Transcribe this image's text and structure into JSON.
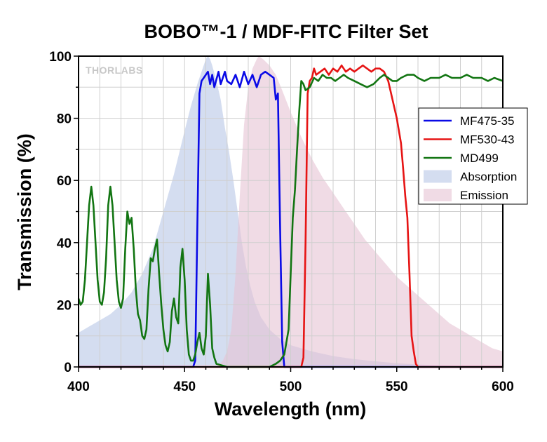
{
  "chart_data": {
    "type": "line",
    "title": "BOBO™-1 / MDF-FITC Filter Set",
    "xlabel": "Wavelength (nm)",
    "ylabel": "Transmission (%)",
    "xlim": [
      400,
      600
    ],
    "ylim": [
      0,
      100
    ],
    "xticks": [
      400,
      450,
      500,
      550,
      600
    ],
    "yticks": [
      0,
      20,
      40,
      60,
      80,
      100
    ],
    "grid": true,
    "legend_position": "right",
    "watermark": "THORLABS",
    "series": [
      {
        "name": "MF475-35",
        "kind": "line",
        "color": "#0a0ae6",
        "points": [
          [
            400,
            0
          ],
          [
            454,
            0
          ],
          [
            455,
            2
          ],
          [
            456,
            45
          ],
          [
            457,
            88
          ],
          [
            458,
            92
          ],
          [
            459,
            93
          ],
          [
            461,
            95
          ],
          [
            462,
            91
          ],
          [
            463,
            94
          ],
          [
            464,
            90
          ],
          [
            466,
            95
          ],
          [
            467,
            91
          ],
          [
            469,
            95
          ],
          [
            470,
            92
          ],
          [
            472,
            91
          ],
          [
            474,
            94
          ],
          [
            476,
            90
          ],
          [
            478,
            95
          ],
          [
            480,
            91
          ],
          [
            482,
            94
          ],
          [
            484,
            90
          ],
          [
            486,
            94
          ],
          [
            488,
            95
          ],
          [
            490,
            94
          ],
          [
            492,
            93
          ],
          [
            493,
            86
          ],
          [
            494,
            88
          ],
          [
            495,
            45
          ],
          [
            496,
            8
          ],
          [
            497,
            0
          ],
          [
            600,
            0
          ]
        ]
      },
      {
        "name": "MF530-43",
        "kind": "line",
        "color": "#e61414",
        "points": [
          [
            400,
            0
          ],
          [
            505,
            0
          ],
          [
            506,
            3
          ],
          [
            507,
            40
          ],
          [
            508,
            88
          ],
          [
            509,
            92
          ],
          [
            510,
            93
          ],
          [
            511,
            96
          ],
          [
            512,
            94
          ],
          [
            514,
            95
          ],
          [
            516,
            96
          ],
          [
            518,
            94
          ],
          [
            520,
            96
          ],
          [
            522,
            95
          ],
          [
            524,
            97
          ],
          [
            526,
            95
          ],
          [
            528,
            96
          ],
          [
            530,
            95
          ],
          [
            532,
            96
          ],
          [
            534,
            97
          ],
          [
            536,
            96
          ],
          [
            538,
            95
          ],
          [
            540,
            96
          ],
          [
            542,
            96
          ],
          [
            544,
            95
          ],
          [
            546,
            92
          ],
          [
            548,
            86
          ],
          [
            550,
            80
          ],
          [
            552,
            72
          ],
          [
            553,
            64
          ],
          [
            554,
            55
          ],
          [
            555,
            48
          ],
          [
            556,
            30
          ],
          [
            557,
            10
          ],
          [
            558,
            5
          ],
          [
            559,
            1
          ],
          [
            560,
            0
          ],
          [
            600,
            0
          ]
        ]
      },
      {
        "name": "MD499",
        "kind": "line",
        "color": "#127512",
        "points": [
          [
            400,
            22
          ],
          [
            401,
            20
          ],
          [
            402,
            21
          ],
          [
            403,
            28
          ],
          [
            404,
            40
          ],
          [
            405,
            52
          ],
          [
            406,
            58
          ],
          [
            407,
            52
          ],
          [
            408,
            40
          ],
          [
            409,
            28
          ],
          [
            410,
            21
          ],
          [
            411,
            20
          ],
          [
            412,
            24
          ],
          [
            413,
            35
          ],
          [
            414,
            52
          ],
          [
            415,
            58
          ],
          [
            416,
            52
          ],
          [
            417,
            40
          ],
          [
            418,
            28
          ],
          [
            419,
            21
          ],
          [
            420,
            19
          ],
          [
            421,
            22
          ],
          [
            422,
            38
          ],
          [
            423,
            50
          ],
          [
            424,
            46
          ],
          [
            425,
            48
          ],
          [
            426,
            38
          ],
          [
            427,
            25
          ],
          [
            428,
            17
          ],
          [
            429,
            15
          ],
          [
            430,
            10
          ],
          [
            431,
            9
          ],
          [
            432,
            12
          ],
          [
            433,
            25
          ],
          [
            434,
            35
          ],
          [
            435,
            34
          ],
          [
            436,
            38
          ],
          [
            437,
            41
          ],
          [
            438,
            30
          ],
          [
            439,
            20
          ],
          [
            440,
            12
          ],
          [
            441,
            7
          ],
          [
            442,
            5
          ],
          [
            443,
            8
          ],
          [
            444,
            18
          ],
          [
            445,
            22
          ],
          [
            446,
            16
          ],
          [
            447,
            14
          ],
          [
            448,
            32
          ],
          [
            449,
            38
          ],
          [
            450,
            28
          ],
          [
            451,
            12
          ],
          [
            452,
            4
          ],
          [
            453,
            2
          ],
          [
            454,
            2
          ],
          [
            455,
            4
          ],
          [
            456,
            8
          ],
          [
            457,
            11
          ],
          [
            458,
            6
          ],
          [
            459,
            4
          ],
          [
            460,
            10
          ],
          [
            461,
            30
          ],
          [
            462,
            20
          ],
          [
            463,
            6
          ],
          [
            464,
            3
          ],
          [
            465,
            1
          ],
          [
            470,
            0
          ],
          [
            480,
            0
          ],
          [
            490,
            0
          ],
          [
            493,
            1
          ],
          [
            495,
            2
          ],
          [
            497,
            4
          ],
          [
            499,
            12
          ],
          [
            500,
            30
          ],
          [
            501,
            48
          ],
          [
            502,
            57
          ],
          [
            503,
            70
          ],
          [
            504,
            82
          ],
          [
            505,
            92
          ],
          [
            506,
            91
          ],
          [
            507,
            89
          ],
          [
            509,
            90
          ],
          [
            511,
            93
          ],
          [
            513,
            92
          ],
          [
            515,
            94
          ],
          [
            517,
            93
          ],
          [
            519,
            93
          ],
          [
            521,
            92
          ],
          [
            523,
            93
          ],
          [
            525,
            94
          ],
          [
            527,
            93
          ],
          [
            530,
            92
          ],
          [
            533,
            91
          ],
          [
            536,
            90
          ],
          [
            539,
            91
          ],
          [
            542,
            93
          ],
          [
            544,
            94
          ],
          [
            546,
            93
          ],
          [
            548,
            92
          ],
          [
            550,
            92
          ],
          [
            552,
            93
          ],
          [
            555,
            94
          ],
          [
            558,
            94
          ],
          [
            560,
            93
          ],
          [
            563,
            92
          ],
          [
            566,
            93
          ],
          [
            570,
            93
          ],
          [
            573,
            94
          ],
          [
            576,
            93
          ],
          [
            580,
            93
          ],
          [
            583,
            94
          ],
          [
            586,
            93
          ],
          [
            590,
            93
          ],
          [
            593,
            92
          ],
          [
            596,
            93
          ],
          [
            600,
            92
          ]
        ]
      },
      {
        "name": "Absorption",
        "kind": "area",
        "color": "#b7c6e6",
        "points": [
          [
            400,
            11
          ],
          [
            405,
            13
          ],
          [
            410,
            15
          ],
          [
            415,
            17
          ],
          [
            420,
            20
          ],
          [
            425,
            24
          ],
          [
            430,
            30
          ],
          [
            435,
            38
          ],
          [
            440,
            50
          ],
          [
            445,
            62
          ],
          [
            450,
            76
          ],
          [
            453,
            84
          ],
          [
            456,
            91
          ],
          [
            458,
            95
          ],
          [
            460,
            99
          ],
          [
            461,
            100
          ],
          [
            462,
            99
          ],
          [
            463,
            97
          ],
          [
            465,
            92
          ],
          [
            467,
            86
          ],
          [
            469,
            77
          ],
          [
            471,
            69
          ],
          [
            473,
            60
          ],
          [
            475,
            50
          ],
          [
            477,
            40
          ],
          [
            479,
            32
          ],
          [
            481,
            26
          ],
          [
            483,
            21
          ],
          [
            486,
            16
          ],
          [
            490,
            12
          ],
          [
            495,
            9
          ],
          [
            500,
            7
          ],
          [
            510,
            5
          ],
          [
            520,
            3.5
          ],
          [
            530,
            2.5
          ],
          [
            540,
            1.8
          ],
          [
            550,
            1.2
          ],
          [
            560,
            0.8
          ],
          [
            570,
            0.5
          ],
          [
            580,
            0.3
          ],
          [
            590,
            0.2
          ],
          [
            600,
            0.1
          ]
        ]
      },
      {
        "name": "Emission",
        "kind": "area",
        "color": "#e6c3d3",
        "points": [
          [
            400,
            0
          ],
          [
            465,
            0
          ],
          [
            468,
            2
          ],
          [
            470,
            5
          ],
          [
            472,
            12
          ],
          [
            474,
            30
          ],
          [
            476,
            55
          ],
          [
            478,
            78
          ],
          [
            480,
            90
          ],
          [
            482,
            96
          ],
          [
            484,
            99
          ],
          [
            485,
            100
          ],
          [
            487,
            99
          ],
          [
            490,
            97
          ],
          [
            493,
            94
          ],
          [
            496,
            89
          ],
          [
            500,
            82
          ],
          [
            505,
            74
          ],
          [
            510,
            67
          ],
          [
            515,
            61
          ],
          [
            520,
            56
          ],
          [
            525,
            51
          ],
          [
            530,
            46
          ],
          [
            535,
            41
          ],
          [
            540,
            37
          ],
          [
            545,
            33
          ],
          [
            550,
            29
          ],
          [
            555,
            26
          ],
          [
            560,
            23
          ],
          [
            565,
            20
          ],
          [
            570,
            17
          ],
          [
            575,
            14
          ],
          [
            580,
            12
          ],
          [
            585,
            10
          ],
          [
            590,
            8
          ],
          [
            595,
            6
          ],
          [
            600,
            5
          ]
        ]
      }
    ]
  }
}
